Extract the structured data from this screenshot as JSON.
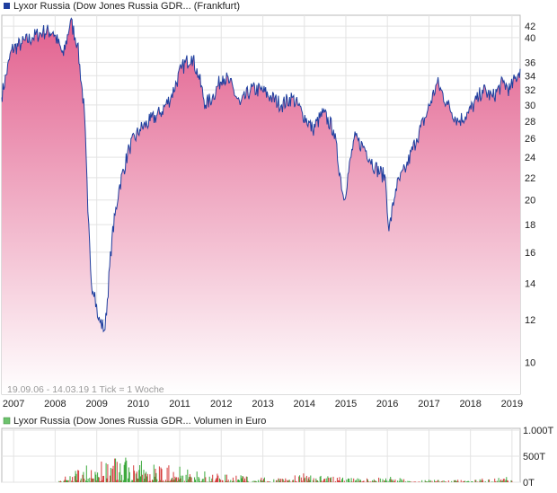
{
  "colors": {
    "accent_price": "#1f3f9f",
    "fill_top": "#e2608e",
    "fill_bottom": "#ffffff",
    "vol_up": "#3aa83a",
    "vol_down": "#d43a3a",
    "grid": "#e3e3e3",
    "frame": "#b9b9b9"
  },
  "chart_data": [
    {
      "type": "area",
      "legend_label": "Lyxor Russia (Dow Jones Russia GDR... (Frankfurt)",
      "legend_placement": "top-left",
      "legend_icon": "blue-square-icon",
      "footer_label": "19.09.06 - 14.03.19   1 Tick = 1 Woche",
      "y_scale": "log",
      "ylim": [
        9,
        44
      ],
      "y_ticks": [
        10,
        12,
        14,
        16,
        18,
        20,
        22,
        24,
        26,
        28,
        30,
        32,
        34,
        36,
        40,
        42
      ],
      "x_range": [
        "2006-09-19",
        "2019-03-14"
      ],
      "x_ticks": [
        "2007",
        "2008",
        "2009",
        "2010",
        "2011",
        "2012",
        "2013",
        "2014",
        "2015",
        "2016",
        "2017",
        "2018",
        "2019"
      ],
      "grid": true,
      "x": [
        "2006-09",
        "2006-12",
        "2007-03",
        "2007-06",
        "2007-09",
        "2007-12",
        "2008-03",
        "2008-05",
        "2008-07",
        "2008-09",
        "2008-10",
        "2008-11",
        "2008-12",
        "2009-01",
        "2009-03",
        "2009-05",
        "2009-07",
        "2009-10",
        "2010-01",
        "2010-04",
        "2010-07",
        "2010-10",
        "2011-01",
        "2011-04",
        "2011-06",
        "2011-08",
        "2011-10",
        "2012-01",
        "2012-03",
        "2012-06",
        "2012-09",
        "2012-12",
        "2013-03",
        "2013-06",
        "2013-09",
        "2013-12",
        "2014-03",
        "2014-06",
        "2014-09",
        "2014-12",
        "2015-03",
        "2015-06",
        "2015-09",
        "2015-12",
        "2016-01",
        "2016-03",
        "2016-06",
        "2016-09",
        "2016-12",
        "2017-03",
        "2017-06",
        "2017-09",
        "2017-12",
        "2018-03",
        "2018-04",
        "2018-07",
        "2018-10",
        "2018-12",
        "2019-03"
      ],
      "series": [
        {
          "values": [
            31,
            38,
            39,
            40,
            41,
            41,
            37,
            43,
            39,
            29,
            19,
            14,
            13.5,
            12,
            11.5,
            17,
            21,
            25,
            27,
            28,
            29,
            31,
            35,
            37,
            34,
            30,
            31,
            34,
            33,
            30,
            32,
            32,
            31,
            30,
            31,
            29,
            27,
            29,
            27,
            20,
            26,
            25,
            23,
            22,
            17.5,
            21,
            23,
            26,
            29,
            33,
            30,
            28,
            29,
            31,
            32,
            31,
            33,
            32,
            35
          ]
        }
      ]
    },
    {
      "type": "bar",
      "legend_label": "Lyxor Russia (Dow Jones Russia GDR... Volumen in Euro",
      "legend_icon": "green-square-icon",
      "y_ticks": [
        "1.000T",
        "500T",
        "0T"
      ],
      "ylim": [
        0,
        1000
      ],
      "y_unit": "T Euro",
      "x": [
        "2006-09",
        "2007-06",
        "2008-01",
        "2008-06",
        "2009-01",
        "2009-06",
        "2010-01",
        "2010-06",
        "2011-01",
        "2011-06",
        "2012-01",
        "2012-06",
        "2013-01",
        "2013-06",
        "2014-01",
        "2014-06",
        "2015-01",
        "2015-06",
        "2016-01",
        "2016-06",
        "2017-01",
        "2017-06",
        "2018-01",
        "2018-06",
        "2019-01"
      ],
      "values": [
        0,
        0,
        0,
        250,
        400,
        550,
        420,
        380,
        320,
        260,
        170,
        140,
        100,
        80,
        180,
        130,
        90,
        70,
        120,
        60,
        50,
        40,
        60,
        80,
        120
      ]
    }
  ]
}
